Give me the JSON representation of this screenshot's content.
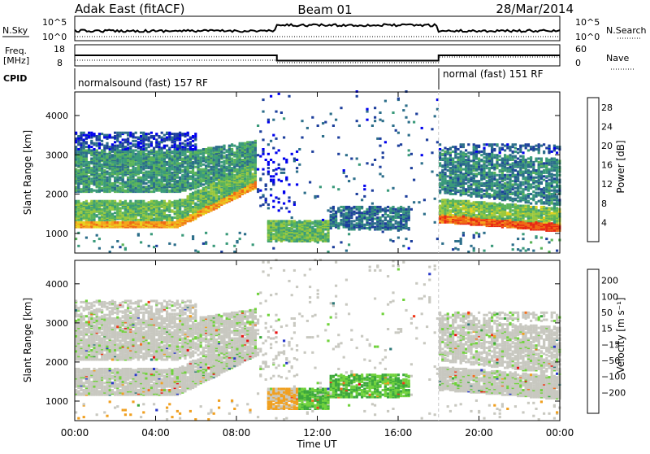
{
  "header": {
    "site": "Adak East (fitACF)",
    "beam": "Beam 01",
    "date": "28/Mar/2014"
  },
  "status_panels": {
    "nsky_label": "N.Sky",
    "nsearch_label": "N.Search",
    "noise_ticks": [
      "10^5",
      "10^0"
    ],
    "freq_label": "Freq.",
    "freq_unit": "[MHz]",
    "freq_ticks": [
      "18",
      "8"
    ],
    "nave_label": "Nave",
    "nave_ticks": [
      "60",
      "0"
    ],
    "cpid_label": "CPID",
    "cpid_segments": [
      {
        "label": "normalsound (fast) 157 RF",
        "start_hour": 0,
        "end_hour": 18
      },
      {
        "label": "normal (fast) 151 RF",
        "start_hour": 18,
        "end_hour": 24
      }
    ],
    "freq_series": [
      {
        "start_hour": 0.0,
        "end_hour": 10.0,
        "mhz": 13.0
      },
      {
        "start_hour": 10.0,
        "end_hour": 18.0,
        "mhz": 10.5
      },
      {
        "start_hour": 18.0,
        "end_hour": 24.0,
        "mhz": 13.0
      }
    ]
  },
  "chart_data": [
    {
      "type": "heatmap",
      "name": "power-panel",
      "ylabel": "Slant Range [km]",
      "yticks": [
        "1000",
        "2000",
        "3000",
        "4000"
      ],
      "ylim": [
        500,
        4600
      ],
      "xlim": [
        0,
        24
      ],
      "colorbar": {
        "label": "Power [dB]",
        "ticks": [
          "4",
          "8",
          "12",
          "16",
          "20",
          "24",
          "28"
        ],
        "range": [
          0,
          30
        ],
        "colors": [
          "#0000ee",
          "#1d3f9c",
          "#2c6e8a",
          "#3a9a7a",
          "#5ab45a",
          "#9bc83c",
          "#e8d21e",
          "#f5a41c",
          "#ee6a14",
          "#e82814"
        ]
      }
    },
    {
      "type": "heatmap",
      "name": "velocity-panel",
      "ylabel": "Slant Range [km]",
      "yticks": [
        "1000",
        "2000",
        "3000",
        "4000"
      ],
      "ylim": [
        500,
        4600
      ],
      "xlim": [
        0,
        24
      ],
      "colorbar": {
        "label": "Velocity [m s⁻¹]",
        "ticks": [
          "200",
          "100",
          "50",
          "15",
          "−15",
          "−50",
          "−100",
          "−200"
        ],
        "colors": [
          "#2838c8",
          "#2c7878",
          "#3ca83c",
          "#70d23c",
          "#c8c8c0",
          "#c8c8c0",
          "#f0a020",
          "#f07020",
          "#f03818",
          "#e81010"
        ]
      }
    }
  ],
  "xaxis": {
    "ticks": [
      "00:00",
      "04:00",
      "08:00",
      "12:00",
      "16:00",
      "20:00",
      "00:00"
    ],
    "label": "Time UT"
  }
}
